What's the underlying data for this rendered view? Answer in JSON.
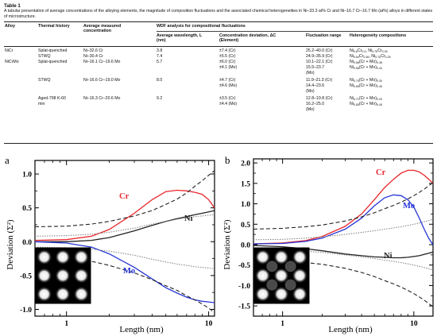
{
  "table": {
    "label": "Table 1",
    "caption": "A tabular presentation of average concentrations of the alloying elements, the magnitude of composition fluctuations and the associated chemical heterogeneities in Ni–33.3 at% Cr and Ni–16.7 Cr–16.7 Mo (at%) alloys in different states of microstructure.",
    "headers": {
      "alloy": "Alloy",
      "thermal": "Thermal history",
      "avg_conc": "Average measured concentration",
      "wdf_group": "WDF analysis for compositional fluctuations",
      "avg_wavelength": "Average wavelength, L (nm)",
      "conc_dev": "Concentration deviation, ΔC (Element)",
      "fluct_range": "Fluctuation range",
      "hetero": "Heterogeneity compositions"
    },
    "rows": [
      {
        "alloy": "NiCr",
        "thermal": "Splat-quenched",
        "conc": "Ni–32.6 Cr",
        "wavelength": "3.8",
        "dev": [
          "±7.4 (Cr)"
        ],
        "range": [
          "25.2–40.0 (Cr)"
        ],
        "het": [
          {
            "a": "Ni",
            "as": "0.6",
            "b": "Cr",
            "bs": "0.4",
            "c": "Ni",
            "cs": "0.75",
            "d": "Cr",
            "ds": "0.25"
          }
        ]
      },
      {
        "alloy": "",
        "thermal": "STWQ",
        "conc": "Ni–30.4 Cr",
        "wavelength": "7.4",
        "dev": [
          "±5.5 (Cr)"
        ],
        "range": [
          "24.9–35.9 (Cr)"
        ],
        "het": [
          {
            "a": "Ni",
            "as": "0.64",
            "b": "Cr",
            "bs": "0.36",
            "c": "Ni",
            "cs": "0.75",
            "d": "Cr",
            "ds": "0.25"
          }
        ]
      },
      {
        "alloy": "NiCrMo",
        "thermal": "Splat-quenched",
        "conc": "Ni–16.1 Cr–19.6 Mo",
        "wavelength": "5.7",
        "dev": [
          "±6.0 (Cr)",
          "±4.1 (Mo)"
        ],
        "range": [
          "10.1–22.1 (Cr)",
          "15.5–23.7",
          "(Mo)"
        ],
        "het": [
          {
            "a": "Ni",
            "as": "0.58",
            "b": "(Cr + Mo)",
            "bs": "0.38"
          },
          {
            "a": "Ni",
            "as": "0.56",
            "b": "(Cr + Mo)",
            "bs": "0.44"
          }
        ]
      },
      {
        "alloy": "",
        "thermal": "STWQ",
        "conc": "Ni–16.6 Cr–19.0 Mo",
        "wavelength": "8.0",
        "dev": [
          "±4.7 (Cr)",
          "±4.6 (Mo)"
        ],
        "range": [
          "11.9–21.3 (Cr)",
          "14.4–23.6",
          "(Mo)"
        ],
        "het": [
          {
            "a": "Ni",
            "as": "0.70",
            "b": "(Cr + Mo)",
            "bs": "0.30"
          },
          {
            "a": "Ni",
            "as": "0.55",
            "b": "(Cr + Mo)",
            "bs": "0.45"
          }
        ]
      },
      {
        "alloy": "",
        "thermal": "Aged-798 K-60 min",
        "conc": "Ni–16.3 Cr–20.6 Mo",
        "wavelength": "9.2",
        "dev": [
          "±3.5 (Cr)",
          "±4.4 (Mo)"
        ],
        "range": [
          "12.8–19.8 (Cr)",
          "16.2–25.0",
          "(Mo)"
        ],
        "het": [
          {
            "a": "Ni",
            "as": "0.71",
            "b": "(Cr + Mo)",
            "bs": "0.29"
          },
          {
            "a": "Ni",
            "as": "0.55",
            "b": "(Cr + Mo)",
            "bs": "0.45"
          }
        ]
      }
    ]
  },
  "figures": {
    "panel_a": {
      "tag": "a",
      "ylabel": "Deviation (Σ²)",
      "xlabel": "Length (nm)",
      "yticks": [
        "1.0",
        "0.5",
        "0.0",
        "-0.5",
        "-1.0"
      ],
      "xticks": [
        "1",
        "10"
      ],
      "labels": {
        "cr": "Cr",
        "ni": "Ni",
        "mo": "Mo"
      }
    },
    "panel_b": {
      "tag": "b",
      "ylabel": "Deviation (Σ²)",
      "xlabel": "Length (nm)",
      "yticks": [
        "2.0",
        "1.5",
        "1.0",
        "0.5",
        "0.0",
        "-0.5",
        "-1.0",
        "-1.5"
      ],
      "xticks": [
        "1",
        "10"
      ],
      "labels": {
        "cr": "Cr",
        "mo": "Mo",
        "ni": "Ni"
      }
    },
    "colors": {
      "cr": "#e8262b",
      "mo": "#2636d6",
      "ni": "#222222",
      "envelope": "#222222",
      "aux": "#888888"
    }
  },
  "chart_data": [
    {
      "type": "line",
      "xscale": "log",
      "xlim": [
        0.6,
        11
      ],
      "ylim": [
        -1.1,
        1.2
      ],
      "xlabel": "Length (nm)",
      "ylabel": "Deviation (Σ²)",
      "series": [
        {
          "name": "Cr",
          "x": [
            0.6,
            1,
            1.5,
            2,
            3,
            4,
            5,
            6,
            7,
            8,
            9,
            10,
            11
          ],
          "y": [
            0.02,
            0.03,
            0.08,
            0.18,
            0.42,
            0.62,
            0.74,
            0.76,
            0.75,
            0.73,
            0.7,
            0.62,
            0.5
          ]
        },
        {
          "name": "Ni",
          "x": [
            0.6,
            1,
            1.5,
            2,
            3,
            4,
            5,
            6,
            7,
            8,
            9,
            10,
            11
          ],
          "y": [
            0.0,
            0.0,
            0.02,
            0.06,
            0.16,
            0.24,
            0.3,
            0.34,
            0.37,
            0.4,
            0.42,
            0.44,
            0.46
          ]
        },
        {
          "name": "Mo",
          "x": [
            0.6,
            1,
            1.5,
            2,
            3,
            4,
            5,
            6,
            7,
            8,
            9,
            10,
            11
          ],
          "y": [
            0.0,
            -0.02,
            -0.08,
            -0.18,
            -0.38,
            -0.55,
            -0.68,
            -0.76,
            -0.82,
            -0.86,
            -0.88,
            -0.89,
            -0.9
          ]
        },
        {
          "x": [
            0.6,
            1,
            1.5,
            2,
            3,
            4,
            5,
            6,
            7,
            8,
            9,
            10,
            11
          ],
          "y": [
            0.22,
            0.23,
            0.26,
            0.3,
            0.38,
            0.46,
            0.55,
            0.63,
            0.72,
            0.82,
            0.9,
            0.98,
            1.05
          ]
        },
        {
          "x": [
            0.6,
            1,
            1.5,
            2,
            3,
            4,
            5,
            6,
            7,
            8,
            9,
            10,
            11
          ],
          "y": [
            -0.22,
            -0.24,
            -0.29,
            -0.35,
            -0.46,
            -0.56,
            -0.65,
            -0.72,
            -0.8,
            -0.86,
            -0.92,
            -0.98,
            -1.05
          ]
        },
        {
          "x": [
            0.6,
            1,
            1.5,
            2,
            3,
            4,
            5,
            6,
            7,
            8,
            9,
            10,
            11
          ],
          "y": [
            0.08,
            0.09,
            0.11,
            0.14,
            0.2,
            0.26,
            0.3,
            0.33,
            0.35,
            0.37,
            0.38,
            0.39,
            0.4
          ]
        },
        {
          "x": [
            0.6,
            1,
            1.5,
            2,
            3,
            4,
            5,
            6,
            7,
            8,
            9,
            10,
            11
          ],
          "y": [
            -0.08,
            -0.09,
            -0.11,
            -0.14,
            -0.2,
            -0.26,
            -0.3,
            -0.33,
            -0.35,
            -0.37,
            -0.38,
            -0.39,
            -0.4
          ]
        }
      ]
    },
    {
      "type": "line",
      "xscale": "log",
      "xlim": [
        0.6,
        14
      ],
      "ylim": [
        -1.75,
        2.1
      ],
      "xlabel": "Length (nm)",
      "ylabel": "Deviation (Σ²)",
      "series": [
        {
          "name": "Cr",
          "x": [
            0.6,
            1,
            1.5,
            2,
            3,
            4,
            5,
            6,
            7,
            8,
            9,
            10,
            11,
            12,
            13,
            14
          ],
          "y": [
            0.02,
            0.04,
            0.1,
            0.2,
            0.45,
            0.75,
            1.1,
            1.4,
            1.6,
            1.75,
            1.82,
            1.82,
            1.78,
            1.7,
            1.6,
            1.5
          ]
        },
        {
          "name": "Mo",
          "x": [
            0.6,
            1,
            1.5,
            2,
            3,
            4,
            5,
            6,
            7,
            8,
            9,
            10,
            11,
            12,
            13,
            14
          ],
          "y": [
            0.02,
            0.03,
            0.08,
            0.16,
            0.38,
            0.65,
            0.95,
            1.15,
            1.22,
            1.2,
            1.1,
            0.92,
            0.65,
            0.38,
            0.15,
            0.0
          ]
        },
        {
          "name": "Ni",
          "x": [
            0.6,
            1,
            1.5,
            2,
            3,
            4,
            5,
            6,
            7,
            8,
            9,
            10,
            11,
            12,
            13,
            14
          ],
          "y": [
            -0.02,
            -0.05,
            -0.1,
            -0.15,
            -0.23,
            -0.27,
            -0.3,
            -0.31,
            -0.32,
            -0.32,
            -0.31,
            -0.29,
            -0.27,
            -0.24,
            -0.21,
            -0.18
          ]
        },
        {
          "x": [
            0.6,
            1,
            1.5,
            2,
            3,
            4,
            5,
            6,
            7,
            8,
            9,
            10,
            11,
            12,
            13,
            14
          ],
          "y": [
            0.38,
            0.4,
            0.44,
            0.48,
            0.58,
            0.68,
            0.78,
            0.88,
            0.96,
            1.04,
            1.12,
            1.2,
            1.28,
            1.36,
            1.44,
            1.52
          ]
        },
        {
          "x": [
            0.6,
            1,
            1.5,
            2,
            3,
            4,
            5,
            6,
            7,
            8,
            9,
            10,
            11,
            12,
            13,
            14
          ],
          "y": [
            -0.38,
            -0.4,
            -0.44,
            -0.48,
            -0.58,
            -0.68,
            -0.78,
            -0.88,
            -0.96,
            -1.04,
            -1.12,
            -1.2,
            -1.28,
            -1.36,
            -1.44,
            -1.52
          ]
        },
        {
          "x": [
            0.6,
            1,
            1.5,
            2,
            3,
            4,
            5,
            6,
            7,
            8,
            9,
            10,
            11,
            12,
            13,
            14
          ],
          "y": [
            0.12,
            0.13,
            0.16,
            0.19,
            0.25,
            0.3,
            0.34,
            0.38,
            0.41,
            0.44,
            0.47,
            0.5,
            0.53,
            0.56,
            0.59,
            0.62
          ]
        },
        {
          "x": [
            0.6,
            1,
            1.5,
            2,
            3,
            4,
            5,
            6,
            7,
            8,
            9,
            10,
            11,
            12,
            13,
            14
          ],
          "y": [
            -0.12,
            -0.13,
            -0.16,
            -0.19,
            -0.25,
            -0.3,
            -0.34,
            -0.38,
            -0.41,
            -0.44,
            -0.47,
            -0.5,
            -0.53,
            -0.56,
            -0.59,
            -0.62
          ]
        }
      ]
    }
  ]
}
